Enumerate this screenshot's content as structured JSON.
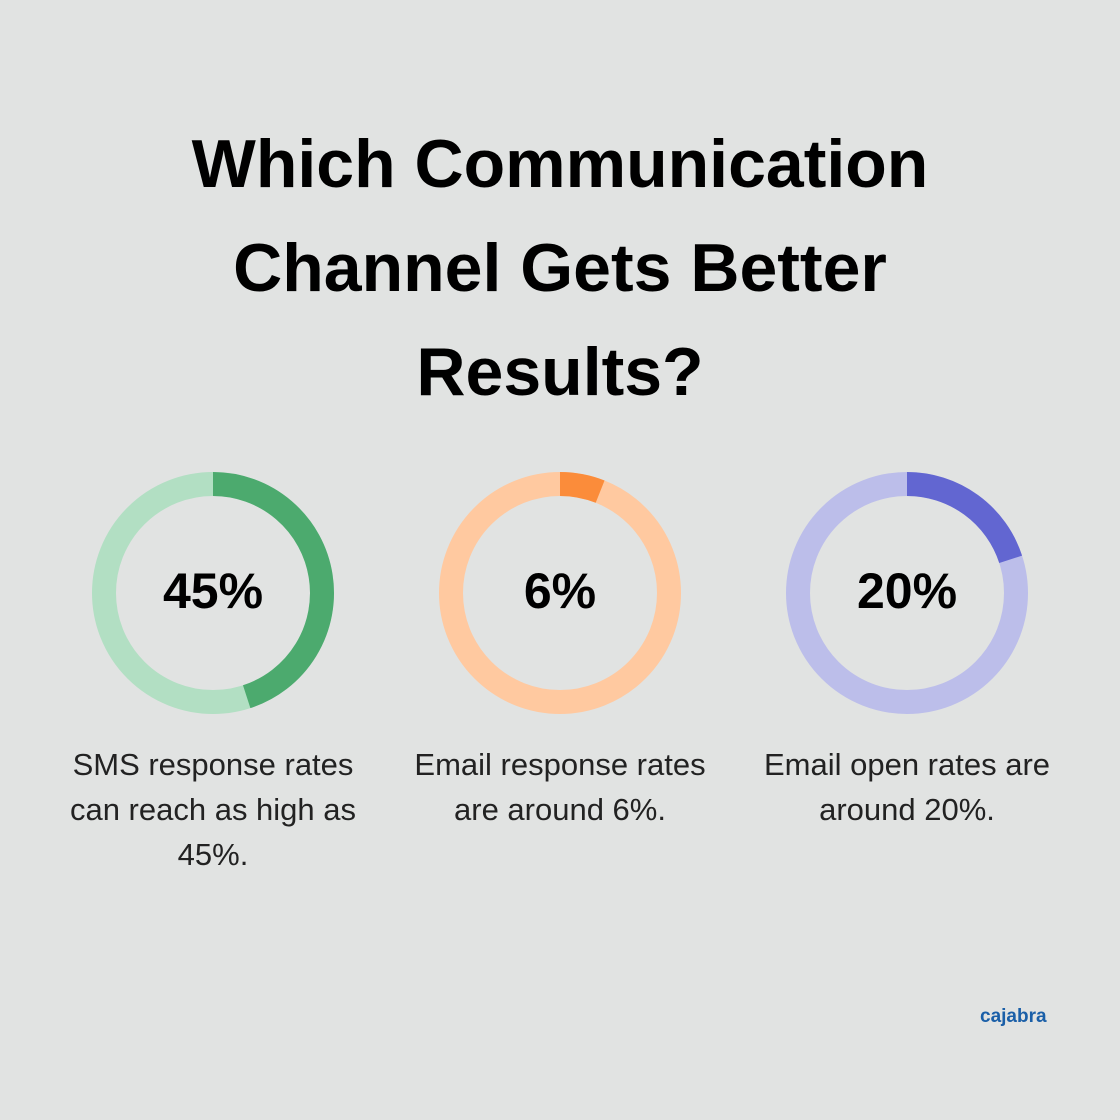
{
  "title": "Which Communication Channel Gets Better Results?",
  "brand": "cajabra",
  "chart_data": [
    {
      "type": "donut",
      "values": [
        45
      ],
      "value_labels": [
        "45%"
      ],
      "vlim": [
        0,
        100
      ],
      "color": "#4caa6e",
      "track_color": "#b2dfc3",
      "caption": "SMS response rates can reach as high as 45%."
    },
    {
      "type": "donut",
      "values": [
        6
      ],
      "value_labels": [
        "6%"
      ],
      "vlim": [
        0,
        100
      ],
      "color": "#fb8c3a",
      "track_color": "#ffc9a0",
      "caption": "Email response rates are around 6%."
    },
    {
      "type": "donut",
      "values": [
        20
      ],
      "value_labels": [
        "20%"
      ],
      "vlim": [
        0,
        100
      ],
      "color": "#6266d1",
      "track_color": "#bcbeea",
      "caption": "Email open rates are around 20%."
    }
  ]
}
